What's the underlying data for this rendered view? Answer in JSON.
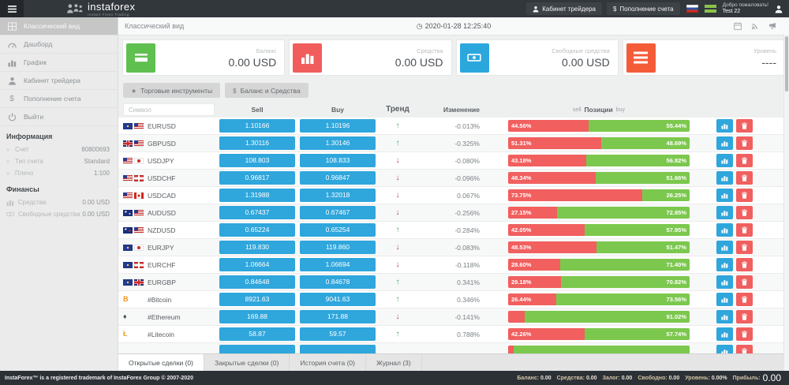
{
  "navbar": {
    "logo_text": "instaforex",
    "logo_subtitle": "Instant Forex Trading",
    "buttons": [
      {
        "name": "trader-cabinet-button",
        "icon": "user-icon",
        "label": "Кабинет трейдера"
      },
      {
        "name": "deposit-button",
        "icon": "dollar-icon",
        "label": "Пополнение счета"
      }
    ],
    "welcome_line1": "Добро пожаловать!",
    "welcome_line2": "Test 22"
  },
  "sidebar": {
    "menu": [
      {
        "label": "Классический вид",
        "icon": "table-icon",
        "active": true
      },
      {
        "label": "Дашборд",
        "icon": "dashboard-icon"
      },
      {
        "label": "График",
        "icon": "chart-icon"
      },
      {
        "label": "Кабинет трейдера",
        "icon": "user-icon"
      },
      {
        "label": "Пополнение счета",
        "icon": "dollar-icon"
      },
      {
        "label": "Выйти",
        "icon": "power-icon"
      }
    ],
    "info_header": "Информация",
    "info": [
      {
        "label": "Счет",
        "value": "80800693"
      },
      {
        "label": "Тип счета",
        "value": "Standard"
      },
      {
        "label": "Плечо",
        "value": "1:100"
      }
    ],
    "finance_header": "Финансы",
    "finance": [
      {
        "label": "Средства",
        "icon": "chart-icon",
        "value": "0.00 USD"
      },
      {
        "label": "Свободные средства",
        "icon": "banknote-icon",
        "value": "0.00 USD"
      }
    ]
  },
  "content_header": {
    "title": "Классический вид",
    "datetime": "2020-01-28 12:25:40"
  },
  "cards": [
    {
      "label": "Баланс",
      "value": "0.00 USD",
      "icon": "credit-card-icon",
      "color": "#5fc04f"
    },
    {
      "label": "Средства",
      "value": "0.00 USD",
      "icon": "bar-chart-icon",
      "color": "#f15d5d"
    },
    {
      "label": "Свободные средства",
      "value": "0.00 USD",
      "icon": "banknote-icon",
      "color": "#2ba7de"
    },
    {
      "label": "Уровень",
      "value": "----",
      "icon": "list-icon",
      "color": "#f45c38"
    }
  ],
  "toolbar": [
    {
      "name": "trading-instruments-button",
      "icon": "star-icon",
      "label": "Торговые инструменты"
    },
    {
      "name": "balance-funds-button",
      "icon": "dollar-icon",
      "label": "Баланс и Средства"
    }
  ],
  "table": {
    "symbol_placeholder": "Символ",
    "headers": {
      "sell": "Sell",
      "buy": "Buy",
      "trend": "Тренд",
      "change": "Изменение",
      "pos_sell": "sell",
      "pos_mid": "Позиции",
      "pos_buy": "buy"
    },
    "rows": [
      {
        "symbol": "EURUSD",
        "flags": [
          "eu",
          "us"
        ],
        "sell": "1.10166",
        "buy": "1.10196",
        "trend": "up",
        "change": "-0.013%",
        "sell_pct": 44.56,
        "buy_pct": 55.44,
        "sell_label": "44.56%",
        "buy_label": "55.44%"
      },
      {
        "symbol": "GBPUSD",
        "flags": [
          "gb",
          "us"
        ],
        "sell": "1.30116",
        "buy": "1.30146",
        "trend": "up",
        "change": "-0.325%",
        "sell_pct": 51.31,
        "buy_pct": 48.69,
        "sell_label": "51.31%",
        "buy_label": "48.69%"
      },
      {
        "symbol": "USDJPY",
        "flags": [
          "us",
          "jp"
        ],
        "sell": "108.803",
        "buy": "108.833",
        "trend": "down",
        "change": "-0.080%",
        "sell_pct": 43.18,
        "buy_pct": 56.82,
        "sell_label": "43.18%",
        "buy_label": "56.82%"
      },
      {
        "symbol": "USDCHF",
        "flags": [
          "us",
          "ch"
        ],
        "sell": "0.96817",
        "buy": "0.96847",
        "trend": "down",
        "change": "-0.096%",
        "sell_pct": 48.34,
        "buy_pct": 51.66,
        "sell_label": "48.34%",
        "buy_label": "51.66%"
      },
      {
        "symbol": "USDCAD",
        "flags": [
          "us",
          "ca"
        ],
        "sell": "1.31988",
        "buy": "1.32018",
        "trend": "down",
        "change": "0.067%",
        "sell_pct": 73.75,
        "buy_pct": 26.25,
        "sell_label": "73.75%",
        "buy_label": "26.25%"
      },
      {
        "symbol": "AUDUSD",
        "flags": [
          "au",
          "us"
        ],
        "sell": "0.67437",
        "buy": "0.67467",
        "trend": "down",
        "change": "-0.256%",
        "sell_pct": 27.15,
        "buy_pct": 72.85,
        "sell_label": "27.15%",
        "buy_label": "72.85%"
      },
      {
        "symbol": "NZDUSD",
        "flags": [
          "nz",
          "us"
        ],
        "sell": "0.65224",
        "buy": "0.65254",
        "trend": "up",
        "change": "-0.284%",
        "sell_pct": 42.05,
        "buy_pct": 57.95,
        "sell_label": "42.05%",
        "buy_label": "57.95%"
      },
      {
        "symbol": "EURJPY",
        "flags": [
          "eu",
          "jp"
        ],
        "sell": "119.830",
        "buy": "119.860",
        "trend": "down",
        "change": "-0.083%",
        "sell_pct": 48.53,
        "buy_pct": 51.47,
        "sell_label": "48.53%",
        "buy_label": "51.47%"
      },
      {
        "symbol": "EURCHF",
        "flags": [
          "eu",
          "ch"
        ],
        "sell": "1.06664",
        "buy": "1.06694",
        "trend": "down",
        "change": "-0.118%",
        "sell_pct": 28.6,
        "buy_pct": 71.4,
        "sell_label": "28.60%",
        "buy_label": "71.40%"
      },
      {
        "symbol": "EURGBP",
        "flags": [
          "eu",
          "gb"
        ],
        "sell": "0.84648",
        "buy": "0.84678",
        "trend": "up",
        "change": "0.341%",
        "sell_pct": 29.18,
        "buy_pct": 70.82,
        "sell_label": "29.18%",
        "buy_label": "70.82%"
      },
      {
        "symbol": "#Bitcoin",
        "crypto": "bitcoin-icon",
        "sell": "8921.63",
        "buy": "9041.63",
        "trend": "up",
        "change": "0.346%",
        "sell_pct": 26.44,
        "buy_pct": 73.56,
        "sell_label": "26.44%",
        "buy_label": "73.56%"
      },
      {
        "symbol": "#Ethereum",
        "crypto": "ethereum-icon",
        "sell": "169.88",
        "buy": "171.88",
        "trend": "down",
        "change": "-0.141%",
        "sell_pct": 8.98,
        "buy_pct": 91.02,
        "sell_label": "",
        "buy_label": "91.02%"
      },
      {
        "symbol": "#Litecoin",
        "crypto": "litecoin-icon",
        "sell": "58.87",
        "buy": "59.57",
        "trend": "up",
        "change": "0.788%",
        "sell_pct": 42.26,
        "buy_pct": 57.74,
        "sell_label": "42.26%",
        "buy_label": "57.74%"
      },
      {
        "symbol": "",
        "sell": "",
        "buy": "",
        "trend": "",
        "change": "",
        "sell_pct": 3,
        "buy_pct": 97,
        "sell_label": "",
        "buy_label": "",
        "partial": true
      }
    ]
  },
  "tabs": [
    {
      "name": "tab-open-trades",
      "label": "Открытые сделки (0)",
      "active": true
    },
    {
      "name": "tab-closed-trades",
      "label": "Закрытые сделки (0)"
    },
    {
      "name": "tab-account-history",
      "label": "История счета (0)"
    },
    {
      "name": "tab-journal",
      "label": "Журнал (3)"
    }
  ],
  "footer": {
    "trademark": "InstaForex™ is a registered trademark of InstaForex Group © 2007-2020",
    "stats": [
      {
        "label": "Баланс:",
        "value": "0.00"
      },
      {
        "label": "Средства:",
        "value": "0.00"
      },
      {
        "label": "Залог:",
        "value": "0.00"
      },
      {
        "label": "Свободно:",
        "value": "0.00"
      },
      {
        "label": "Уровень:",
        "value": "0.00%"
      }
    ],
    "profit_label": "Прибыль:",
    "profit_value": "0.00"
  }
}
